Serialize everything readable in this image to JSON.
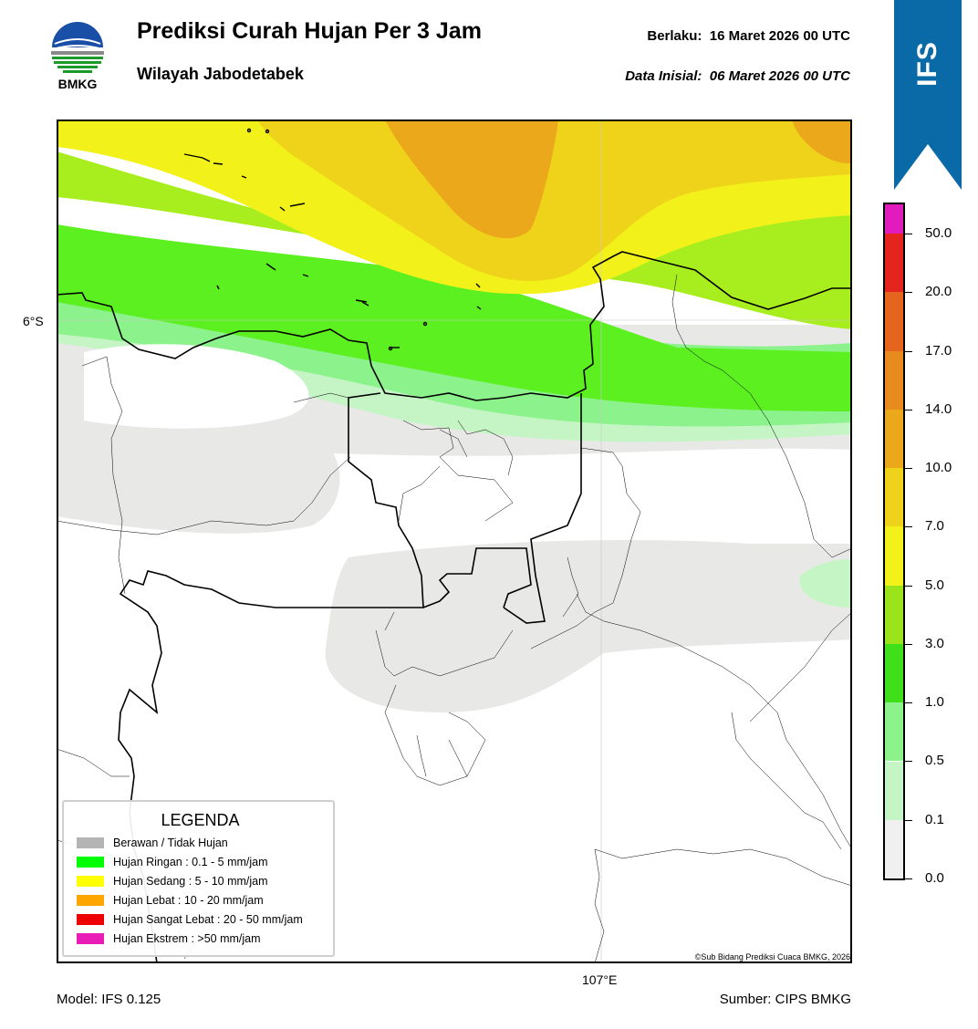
{
  "header": {
    "title": "Prediksi Curah Hujan Per 3 Jam",
    "subtitle": "Wilayah Jabodetabek",
    "valid_label": "Berlaku:",
    "valid_time": "16 Maret 2026 00 UTC",
    "init_label": "Data Inisial:",
    "init_time": "06 Maret 2026 00 UTC"
  },
  "logo": {
    "text": "BMKG",
    "icon": "bmkg-logo-icon"
  },
  "banner": {
    "text": "IFS",
    "color": "#0a6aa8"
  },
  "map": {
    "lat_label": "6°S",
    "lon_label": "107°E",
    "credit": "©Sub Bidang Prediksi Cuaca BMKG, 2026"
  },
  "legend": {
    "title": "LEGENDA",
    "items": [
      {
        "label": "Berawan / Tidak Hujan",
        "color": "#b4b4b4"
      },
      {
        "label": "Hujan Ringan : 0.1 - 5 mm/jam",
        "color": "#00ff00"
      },
      {
        "label": "Hujan Sedang : 5 - 10 mm/jam",
        "color": "#ffff00"
      },
      {
        "label": "Hujan Lebat : 10 - 20 mm/jam",
        "color": "#ffa500"
      },
      {
        "label": "Hujan Sangat Lebat : 20 - 50 mm/jam",
        "color": "#ee0000"
      },
      {
        "label": "Hujan Ekstrem : >50 mm/jam",
        "color": "#ea1cb8"
      }
    ]
  },
  "colorbar": {
    "ticks": [
      "0.0",
      "0.1",
      "0.5",
      "1.0",
      "3.0",
      "5.0",
      "7.0",
      "10.0",
      "14.0",
      "17.0",
      "20.0",
      "50.0"
    ],
    "colors": [
      "#f0f0f0",
      "#c5f5c5",
      "#8cf28c",
      "#3fe01a",
      "#9be31a",
      "#f2f21a",
      "#efd21a",
      "#eba81a",
      "#e98a1e",
      "#e6651e",
      "#e5241e",
      "#e21cbc"
    ]
  },
  "footer": {
    "model": "Model: IFS 0.125",
    "source": "Sumber: CIPS BMKG"
  }
}
